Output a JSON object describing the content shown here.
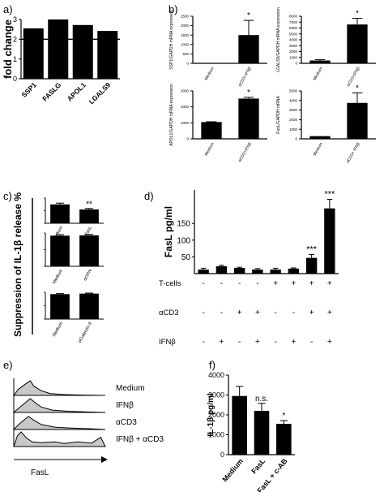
{
  "panels": {
    "a": "a)",
    "b": "b)",
    "c": "c)",
    "d": "d)",
    "e": "e)",
    "f": "f)"
  },
  "chart_data": [
    {
      "id": "a",
      "type": "bar",
      "ylabel": "fold change",
      "ylim": [
        0,
        3
      ],
      "yticks": [
        0,
        1,
        2,
        3
      ],
      "reference_line": 2,
      "categories": [
        "SSP1",
        "FASLG",
        "APOL1",
        "LGALS9"
      ],
      "values": [
        2.55,
        3.0,
        2.72,
        2.42
      ]
    },
    {
      "id": "b1",
      "type": "bar",
      "ylabel": "SSP1/GAPDH mRNA expression",
      "categories": [
        "Medium",
        "αCD3+IFNβ"
      ],
      "values": [
        10,
        1500
      ],
      "errors": [
        0,
        780
      ],
      "ylim": [
        0,
        2500
      ],
      "yticks": [
        0,
        500,
        1000,
        1500,
        2000,
        2500
      ],
      "significance": [
        "",
        "*"
      ]
    },
    {
      "id": "b2",
      "type": "bar",
      "ylabel": "LGALS9/GAPDH mRNA expression",
      "categories": [
        "Medium",
        "αCD3+IFNβ"
      ],
      "values": [
        480,
        6600
      ],
      "errors": [
        150,
        1050
      ],
      "ylim": [
        0,
        8000
      ],
      "yticks": [
        0,
        1000,
        2000,
        3000,
        4000,
        5000,
        6000,
        7000,
        8000
      ],
      "significance": [
        "",
        "*"
      ]
    },
    {
      "id": "b3",
      "type": "bar",
      "ylabel": "APOL1/GAPDH mRNA expression",
      "categories": [
        "Medium",
        "αCD3+IFNβ"
      ],
      "values": [
        1050,
        2520
      ],
      "errors": [
        20,
        80
      ],
      "ylim": [
        0,
        3000
      ],
      "yticks": [
        0,
        1000,
        2000,
        3000
      ],
      "significance": [
        "",
        "*"
      ]
    },
    {
      "id": "b4",
      "type": "bar",
      "ylabel": "FasL/GAPDH mRNA",
      "categories": [
        "Medium",
        "αCD3+ IFNβ"
      ],
      "values": [
        280,
        3750
      ],
      "errors": [
        0,
        1050
      ],
      "ylim": [
        0,
        5000
      ],
      "yticks": [
        0,
        1000,
        2000,
        3000,
        4000,
        5000
      ],
      "significance": [
        "",
        "*"
      ]
    },
    {
      "id": "c",
      "type": "bar",
      "ylabel": "Suppression of IL-1β release %",
      "subcharts": [
        {
          "categories": [
            "Medium",
            "αFasL"
          ],
          "values": [
            75,
            55
          ],
          "errors": [
            5,
            4
          ],
          "ylim": [
            0,
            100
          ],
          "significance": [
            "",
            "**"
          ]
        },
        {
          "categories": [
            "Medium",
            "αOPN"
          ],
          "values": [
            92,
            93
          ],
          "errors": [
            3,
            3
          ],
          "ylim": [
            0,
            100
          ],
          "significance": [
            "",
            ""
          ]
        },
        {
          "categories": [
            "Medium",
            "αGalectin-9"
          ],
          "values": [
            93,
            95
          ],
          "errors": [
            2,
            2
          ],
          "ylim": [
            0,
            100
          ],
          "significance": [
            "",
            ""
          ]
        }
      ]
    },
    {
      "id": "d",
      "type": "bar",
      "ylabel": "FasL pg/ml",
      "ylim": [
        0,
        250
      ],
      "yticks": [
        50,
        100,
        150
      ],
      "values": [
        12,
        22,
        17,
        12,
        12,
        15,
        47,
        195
      ],
      "errors": [
        4,
        3,
        2,
        3,
        4,
        2,
        10,
        27
      ],
      "significance": [
        "",
        "",
        "",
        "",
        "",
        "",
        "***",
        "***"
      ],
      "conditions": [
        {
          "label": "T-cells",
          "marks": [
            "-",
            "-",
            "-",
            "-",
            "+",
            "+",
            "+",
            "+"
          ]
        },
        {
          "label": "αCD3",
          "marks": [
            "-",
            "-",
            "+",
            "+",
            "-",
            "-",
            "+",
            "+"
          ]
        },
        {
          "label": "IFNβ",
          "marks": [
            "-",
            "+",
            "-",
            "+",
            "-",
            "+",
            "-",
            "+"
          ]
        }
      ]
    },
    {
      "id": "e",
      "type": "histogram",
      "xlabel": "FasL",
      "legend": [
        "Medium",
        "IFNβ",
        "αCD3",
        "IFNβ + αCD3"
      ]
    },
    {
      "id": "f",
      "type": "bar",
      "ylabel": "IL-1β pg/ml",
      "ylim": [
        0,
        4000
      ],
      "yticks": [
        0,
        1000,
        2000,
        3000,
        4000
      ],
      "categories": [
        "Medium",
        "FasL",
        "FasL + c-AB"
      ],
      "values": [
        2950,
        2200,
        1550
      ],
      "errors": [
        480,
        380,
        160
      ],
      "significance": [
        "",
        "n.s.",
        "*"
      ]
    }
  ]
}
